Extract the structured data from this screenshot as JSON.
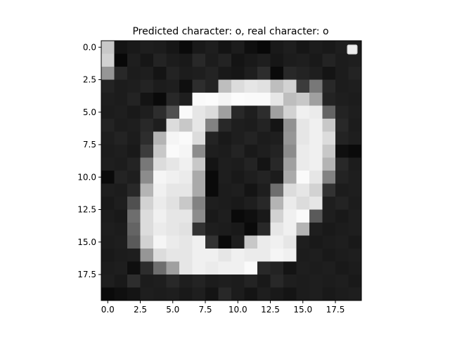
{
  "chart_data": {
    "type": "heatmap",
    "title": "Predicted character: o, real character: o",
    "colormap": "gray",
    "value_range": [
      0,
      255
    ],
    "x_ticks": [
      "0.0",
      "2.5",
      "5.0",
      "7.5",
      "10.0",
      "12.5",
      "15.0",
      "17.5"
    ],
    "y_ticks": [
      "0.0",
      "2.5",
      "5.0",
      "7.5",
      "10.0",
      "12.5",
      "15.0",
      "17.5"
    ],
    "tick_values": [
      0,
      2.5,
      5,
      7.5,
      10,
      12.5,
      15,
      17.5
    ],
    "extent": [
      -0.5,
      19.5
    ],
    "legend": {
      "position": "top-right",
      "entries": []
    },
    "values": [
      [
        200,
        20,
        25,
        30,
        28,
        22,
        10,
        25,
        30,
        20,
        28,
        15,
        8,
        25,
        30,
        22,
        28,
        25,
        30,
        28
      ],
      [
        210,
        8,
        30,
        22,
        35,
        28,
        25,
        40,
        28,
        35,
        20,
        25,
        30,
        22,
        28,
        30,
        25,
        35,
        28,
        30
      ],
      [
        150,
        40,
        28,
        30,
        20,
        35,
        28,
        30,
        35,
        25,
        22,
        30,
        45,
        10,
        40,
        35,
        30,
        20,
        28,
        35
      ],
      [
        35,
        28,
        30,
        35,
        28,
        30,
        15,
        45,
        35,
        190,
        220,
        230,
        225,
        190,
        210,
        60,
        120,
        40,
        28,
        30
      ],
      [
        30,
        28,
        35,
        20,
        10,
        40,
        30,
        250,
        252,
        245,
        252,
        250,
        250,
        230,
        190,
        200,
        160,
        35,
        30,
        28
      ],
      [
        28,
        30,
        25,
        30,
        45,
        80,
        250,
        230,
        220,
        160,
        40,
        30,
        45,
        160,
        210,
        240,
        235,
        100,
        35,
        30
      ],
      [
        35,
        28,
        30,
        40,
        30,
        220,
        200,
        230,
        130,
        40,
        30,
        28,
        35,
        20,
        145,
        230,
        240,
        200,
        40,
        28
      ],
      [
        30,
        35,
        28,
        45,
        180,
        245,
        250,
        220,
        35,
        25,
        30,
        35,
        28,
        30,
        150,
        230,
        240,
        220,
        35,
        30
      ],
      [
        28,
        30,
        25,
        60,
        200,
        250,
        245,
        140,
        30,
        28,
        35,
        25,
        30,
        35,
        140,
        235,
        240,
        200,
        15,
        10
      ],
      [
        30,
        28,
        35,
        120,
        220,
        230,
        240,
        200,
        20,
        30,
        28,
        35,
        20,
        40,
        160,
        235,
        240,
        180,
        40,
        28
      ],
      [
        10,
        35,
        30,
        140,
        245,
        240,
        235,
        170,
        10,
        30,
        25,
        30,
        35,
        28,
        170,
        250,
        230,
        130,
        35,
        30
      ],
      [
        30,
        28,
        40,
        180,
        240,
        230,
        230,
        170,
        10,
        28,
        30,
        20,
        30,
        110,
        220,
        230,
        210,
        50,
        28,
        30
      ],
      [
        25,
        30,
        80,
        210,
        235,
        225,
        200,
        130,
        30,
        28,
        25,
        30,
        40,
        180,
        235,
        220,
        230,
        30,
        35,
        28
      ],
      [
        28,
        25,
        110,
        220,
        240,
        230,
        230,
        140,
        25,
        30,
        10,
        15,
        25,
        210,
        240,
        250,
        90,
        30,
        25,
        30
      ],
      [
        30,
        28,
        100,
        220,
        235,
        230,
        225,
        50,
        30,
        28,
        25,
        10,
        40,
        230,
        240,
        180,
        30,
        25,
        28,
        30
      ],
      [
        28,
        30,
        90,
        210,
        245,
        235,
        230,
        240,
        50,
        10,
        30,
        200,
        235,
        240,
        230,
        30,
        25,
        28,
        30,
        25
      ],
      [
        25,
        28,
        30,
        150,
        220,
        230,
        230,
        240,
        240,
        230,
        240,
        235,
        235,
        245,
        240,
        28,
        30,
        25,
        28,
        30
      ],
      [
        28,
        30,
        15,
        45,
        110,
        160,
        230,
        240,
        235,
        240,
        240,
        250,
        40,
        35,
        20,
        30,
        28,
        30,
        25,
        28
      ],
      [
        30,
        25,
        45,
        28,
        30,
        40,
        30,
        35,
        28,
        30,
        28,
        35,
        25,
        40,
        30,
        28,
        30,
        28,
        30,
        25
      ],
      [
        10,
        15,
        20,
        30,
        28,
        30,
        25,
        30,
        20,
        40,
        28,
        20,
        30,
        25,
        20,
        28,
        30,
        25,
        28,
        30
      ]
    ]
  }
}
